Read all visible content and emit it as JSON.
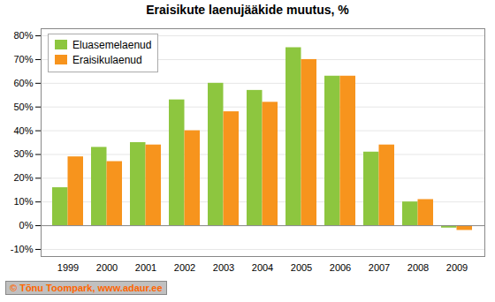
{
  "chart_data": {
    "type": "bar",
    "title": "Eraisikute laenujääkide muutus, %",
    "categories": [
      "1999",
      "2000",
      "2001",
      "2002",
      "2003",
      "2004",
      "2005",
      "2006",
      "2007",
      "2008",
      "2009"
    ],
    "series": [
      {
        "name": "Eluasemelaenud",
        "color": "#8DC63F",
        "values": [
          16,
          33,
          35,
          53,
          60,
          57,
          75,
          63,
          31,
          10,
          -1
        ]
      },
      {
        "name": "Eraisikulaenud",
        "color": "#F7941D",
        "values": [
          29,
          27,
          34,
          40,
          48,
          52,
          70,
          63,
          34,
          11,
          -2
        ]
      }
    ],
    "ylim": [
      -13,
      83
    ],
    "yticks": [
      {
        "value": -10,
        "label": "-10%"
      },
      {
        "value": 0,
        "label": "0%"
      },
      {
        "value": 10,
        "label": "10%"
      },
      {
        "value": 20,
        "label": "20%"
      },
      {
        "value": 30,
        "label": "30%"
      },
      {
        "value": 40,
        "label": "40%"
      },
      {
        "value": 50,
        "label": "50%"
      },
      {
        "value": 60,
        "label": "60%"
      },
      {
        "value": 70,
        "label": "70%"
      },
      {
        "value": 80,
        "label": "80%"
      }
    ],
    "grid": true,
    "legend": "upper left",
    "annotations": [
      "© Tõnu Toompark, www.adaur.ee"
    ]
  }
}
